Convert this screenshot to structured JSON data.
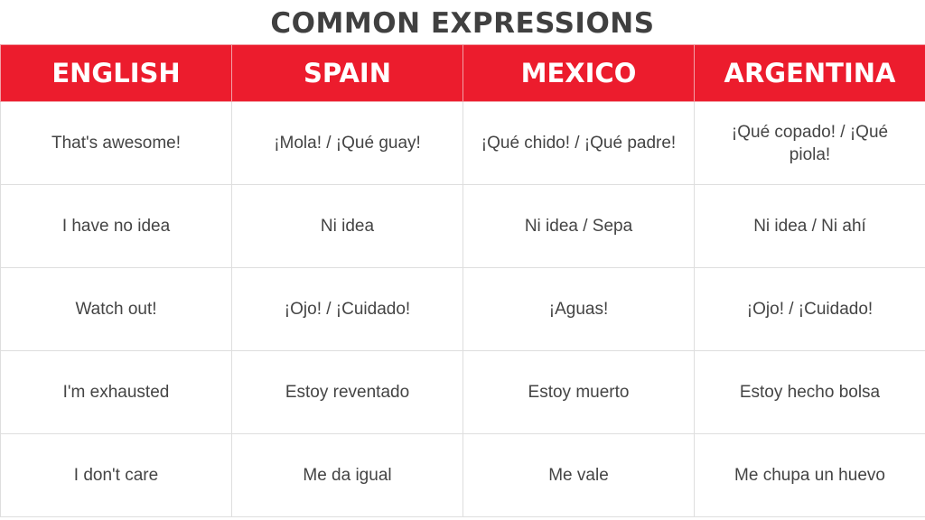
{
  "title": "COMMON EXPRESSIONS",
  "header_color": "#ec1c2d",
  "columns": [
    "ENGLISH",
    "SPAIN",
    "MEXICO",
    "ARGENTINA"
  ],
  "rows": [
    [
      "That's awesome!",
      "¡Mola! / ¡Qué guay!",
      "¡Qué chido! / ¡Qué padre!",
      "¡Qué copado! / ¡Qué piola!"
    ],
    [
      "I have no idea",
      "Ni idea",
      "Ni idea / Sepa",
      "Ni idea / Ni ahí"
    ],
    [
      "Watch out!",
      "¡Ojo! / ¡Cuidado!",
      "¡Aguas!",
      "¡Ojo! / ¡Cuidado!"
    ],
    [
      "I'm exhausted",
      "Estoy reventado",
      "Estoy muerto",
      "Estoy hecho bolsa"
    ],
    [
      "I don't care",
      "Me da igual",
      "Me vale",
      "Me chupa un huevo"
    ]
  ]
}
